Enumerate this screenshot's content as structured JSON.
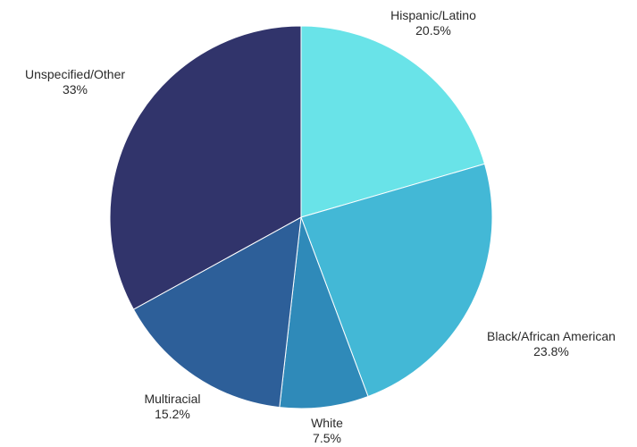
{
  "chart_data": {
    "type": "pie",
    "title": "",
    "slices": [
      {
        "label": "Hispanic/Latino",
        "value_label": "20.5%",
        "value": 20.5,
        "color": "#69e3e8"
      },
      {
        "label": "Black/African American",
        "value_label": "23.8%",
        "value": 23.8,
        "color": "#43b8d6"
      },
      {
        "label": "White",
        "value_label": "7.5%",
        "value": 7.5,
        "color": "#2f8ab9"
      },
      {
        "label": "Multiracial",
        "value_label": "15.2%",
        "value": 15.2,
        "color": "#2d5f99"
      },
      {
        "label": "Unspecified/Other",
        "value_label": "33%",
        "value": 33,
        "color": "#31346b"
      }
    ],
    "start_angle_degrees": 0,
    "direction": "clockwise"
  }
}
